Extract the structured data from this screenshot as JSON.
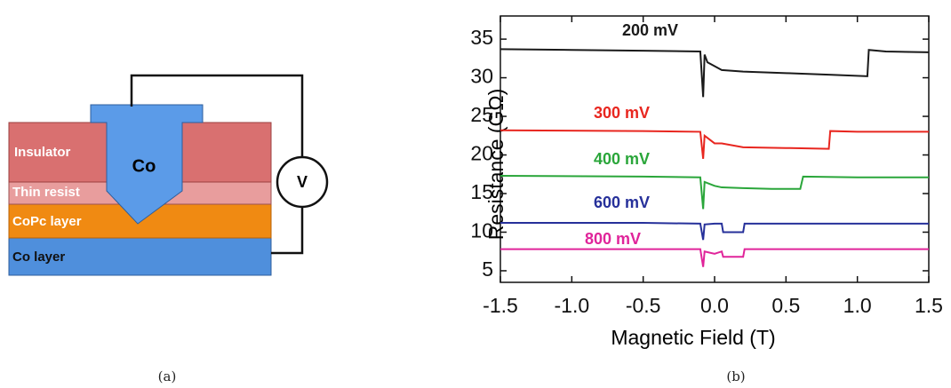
{
  "diagram": {
    "labels": {
      "insulator": "Insulator",
      "co_tip": "Co",
      "thin_resist": "Thin resist",
      "copc_layer": "CoPc layer",
      "co_layer": "Co layer",
      "voltmeter": "V"
    },
    "caption": "(a)"
  },
  "chart_data": {
    "type": "line",
    "caption": "(b)",
    "x_label": "Magnetic Field (T)",
    "y_label": "Resistance (GΩ)",
    "xlim": [
      -1.5,
      1.5
    ],
    "ylim": [
      3.5,
      38
    ],
    "xticks": [
      -1.5,
      {
        "value": -1.0,
        "label": "-1.0"
      },
      -0.5,
      {
        "value": 0.0,
        "label": "0.0"
      },
      0.5,
      {
        "value": 1.0,
        "label": "1.0"
      },
      1.5
    ],
    "yticks": [
      5,
      10,
      15,
      20,
      25,
      30,
      35
    ],
    "series": [
      {
        "name": "200 mV",
        "color": "#1a1a1a",
        "x": [
          -1.5,
          -1.0,
          -0.5,
          -0.1,
          -0.08,
          -0.07,
          -0.05,
          0.0,
          0.05,
          0.2,
          0.5,
          0.8,
          1.07,
          1.08,
          1.2,
          1.5
        ],
        "values": [
          33.7,
          33.6,
          33.5,
          33.4,
          27.5,
          33.0,
          32.0,
          31.5,
          31.0,
          30.8,
          30.6,
          30.4,
          30.2,
          33.6,
          33.4,
          33.3
        ]
      },
      {
        "name": "300 mV",
        "color": "#e8261f",
        "x": [
          -1.5,
          -0.5,
          -0.1,
          -0.08,
          -0.07,
          0.0,
          0.05,
          0.2,
          0.5,
          0.8,
          0.81,
          1.0,
          1.5
        ],
        "values": [
          23.2,
          23.1,
          23.0,
          19.5,
          22.5,
          21.5,
          21.5,
          21.0,
          20.9,
          20.8,
          23.1,
          23.0,
          23.0
        ]
      },
      {
        "name": "400 mV",
        "color": "#2aa63a",
        "x": [
          -1.5,
          -0.5,
          -0.1,
          -0.08,
          -0.07,
          0.0,
          0.05,
          0.2,
          0.4,
          0.6,
          0.62,
          1.0,
          1.5
        ],
        "values": [
          17.3,
          17.2,
          17.1,
          13.0,
          16.5,
          16.0,
          15.8,
          15.7,
          15.6,
          15.6,
          17.2,
          17.1,
          17.1
        ]
      },
      {
        "name": "600 mV",
        "color": "#26309a",
        "x": [
          -1.5,
          -0.5,
          -0.1,
          -0.08,
          -0.07,
          0.0,
          0.05,
          0.06,
          0.2,
          0.21,
          0.5,
          1.5
        ],
        "values": [
          11.2,
          11.2,
          11.1,
          9.0,
          11.0,
          11.1,
          11.1,
          10.0,
          10.0,
          11.1,
          11.1,
          11.1
        ]
      },
      {
        "name": "800 mV",
        "color": "#e0249a",
        "x": [
          -1.5,
          -0.5,
          -0.1,
          -0.08,
          -0.07,
          0.0,
          0.05,
          0.06,
          0.2,
          0.21,
          0.5,
          1.5
        ],
        "values": [
          7.8,
          7.8,
          7.8,
          5.5,
          7.5,
          7.2,
          7.5,
          6.8,
          6.8,
          7.8,
          7.8,
          7.8
        ]
      }
    ]
  }
}
